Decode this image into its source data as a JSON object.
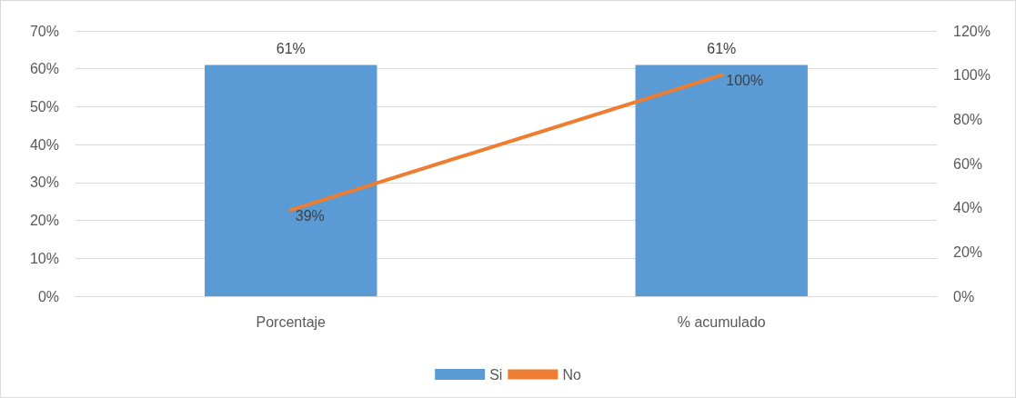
{
  "chart_data": {
    "type": "bar",
    "categories": [
      "Porcentaje",
      "% acumulado"
    ],
    "series": [
      {
        "name": "Si",
        "color": "#5b9bd5",
        "values": [
          61,
          61
        ],
        "value_labels": [
          "61%",
          "61%"
        ]
      },
      {
        "name": "No",
        "type": "line",
        "axis": "y2",
        "color": "#ed7d31",
        "values": [
          39,
          100
        ],
        "value_labels": [
          "39%",
          "100%"
        ],
        "marker": "none",
        "line_style": "solid"
      }
    ],
    "ylim": [
      0,
      70
    ],
    "yticks": [
      {
        "value": 0,
        "label": "0%"
      },
      {
        "value": 10,
        "label": "10%"
      },
      {
        "value": 20,
        "label": "20%"
      },
      {
        "value": 30,
        "label": "30%"
      },
      {
        "value": 40,
        "label": "40%"
      },
      {
        "value": 50,
        "label": "50%"
      },
      {
        "value": 60,
        "label": "60%"
      },
      {
        "value": 70,
        "label": "70%"
      }
    ],
    "y2lim": [
      0,
      120
    ],
    "y2ticks": [
      {
        "value": 0,
        "label": "0%"
      },
      {
        "value": 20,
        "label": "20%"
      },
      {
        "value": 40,
        "label": "40%"
      },
      {
        "value": 60,
        "label": "60%"
      },
      {
        "value": 80,
        "label": "80%"
      },
      {
        "value": 100,
        "label": "100%"
      },
      {
        "value": 120,
        "label": "120%"
      }
    ],
    "grid": "y",
    "legend": "bottom"
  }
}
